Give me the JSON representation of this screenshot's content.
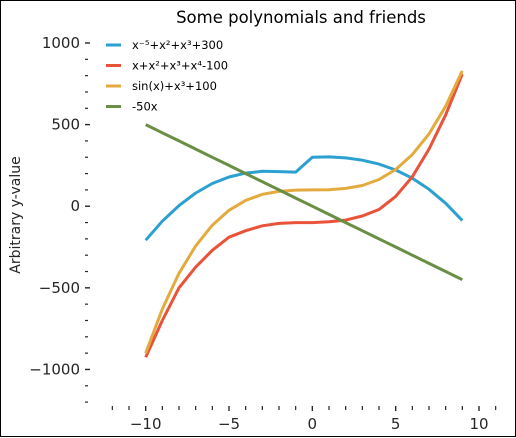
{
  "chart_data": {
    "type": "line",
    "title": "Some polynomials and friends",
    "xlabel": "",
    "ylabel": "Arbitrary y-value",
    "xlim": [
      -12.2,
      11.2
    ],
    "ylim": [
      -1230,
      1000
    ],
    "xticks": [
      -10,
      -5,
      0,
      5,
      10
    ],
    "xtick_labels": [
      "−10",
      "−5",
      "0",
      "5",
      "10"
    ],
    "yticks": [
      1000,
      500,
      0,
      -500,
      -1000
    ],
    "ytick_labels": [
      "1000",
      "500",
      "0",
      "−500",
      "−1000"
    ],
    "x_minor_step": 1,
    "y_minor_step": 100,
    "grid": false,
    "legend_position": "top-left",
    "x": [
      -10,
      -9,
      -8,
      -7,
      -6,
      -5,
      -4,
      -3,
      -2,
      -1,
      0,
      1,
      2,
      3,
      4,
      5,
      6,
      7,
      8,
      9
    ],
    "series": [
      {
        "name": "x⁻⁵+x²+x³+300",
        "color": "#2ca0d0",
        "values": [
          -208,
          -92,
          4,
          81,
          139,
          179,
          203,
          214,
          212,
          209,
          300,
          302,
          296,
          282,
          258,
          222,
          172,
          104,
          18,
          -88
        ]
      },
      {
        "name": "x+x²+x³+x⁴-100",
        "color": "#e8533a",
        "values": [
          -925,
          -700,
          -500,
          -373,
          -270,
          -190,
          -150,
          -120,
          -105,
          -100,
          -100,
          -95,
          -85,
          -60,
          -20,
          60,
          180,
          350,
          560,
          810
        ]
      },
      {
        "name": "sin(x)+x³+100",
        "color": "#e3aa3d",
        "values": [
          -900,
          -630,
          -411,
          -243,
          -116,
          -25,
          36,
          73,
          91,
          99,
          100,
          101,
          109,
          127,
          164,
          225,
          316,
          443,
          613,
          829
        ]
      },
      {
        "name": "-50x",
        "color": "#6b8e45",
        "values": [
          500,
          450,
          400,
          350,
          300,
          250,
          200,
          150,
          100,
          50,
          0,
          -50,
          -100,
          -150,
          -200,
          -250,
          -300,
          -350,
          -400,
          -450
        ]
      }
    ]
  }
}
